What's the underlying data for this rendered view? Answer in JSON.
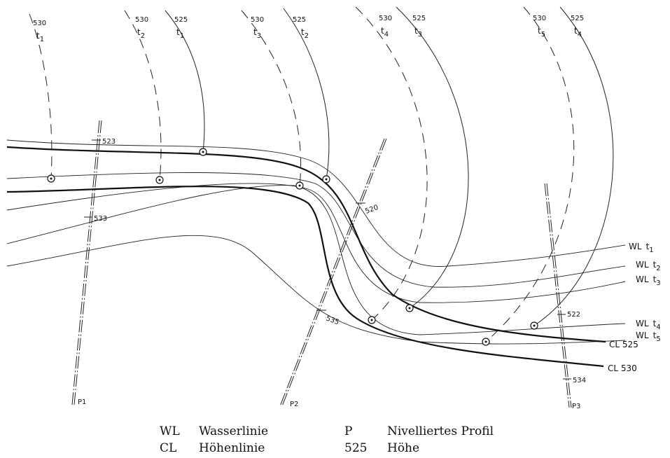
{
  "arc_labels": [
    {
      "height": "530",
      "t": "t",
      "sub": "1"
    },
    {
      "height": "530",
      "t": "t",
      "sub": "2"
    },
    {
      "height": "525",
      "t": "t",
      "sub": "1"
    },
    {
      "height": "530",
      "t": "t",
      "sub": "3"
    },
    {
      "height": "525",
      "t": "t",
      "sub": "2"
    },
    {
      "height": "530",
      "t": "t",
      "sub": "4"
    },
    {
      "height": "525",
      "t": "t",
      "sub": "3"
    },
    {
      "height": "530",
      "t": "t",
      "sub": "5"
    },
    {
      "height": "525",
      "t": "t",
      "sub": "4"
    }
  ],
  "wl_labels": [
    {
      "prefix": "WL",
      "t": "t",
      "sub": "1"
    },
    {
      "prefix": "WL",
      "t": "t",
      "sub": "2"
    },
    {
      "prefix": "WL",
      "t": "t",
      "sub": "3"
    },
    {
      "prefix": "WL",
      "t": "t",
      "sub": "4"
    },
    {
      "prefix": "WL",
      "t": "t",
      "sub": "5"
    }
  ],
  "cl_labels": [
    "CL 525",
    "CL 530"
  ],
  "profile_labels": [
    "P1",
    "P2",
    "P3"
  ],
  "profile_ticks": [
    "523",
    "533",
    "520",
    "535",
    "522",
    "534"
  ],
  "legend": {
    "wl_abbr": "WL",
    "wl_text": "Wasserlinie",
    "cl_abbr": "CL",
    "cl_text": "Höhenlinie",
    "p_abbr": "P",
    "p_text": "Nivelliertes Profil",
    "h_abbr": "525",
    "h_text": "Höhe"
  }
}
